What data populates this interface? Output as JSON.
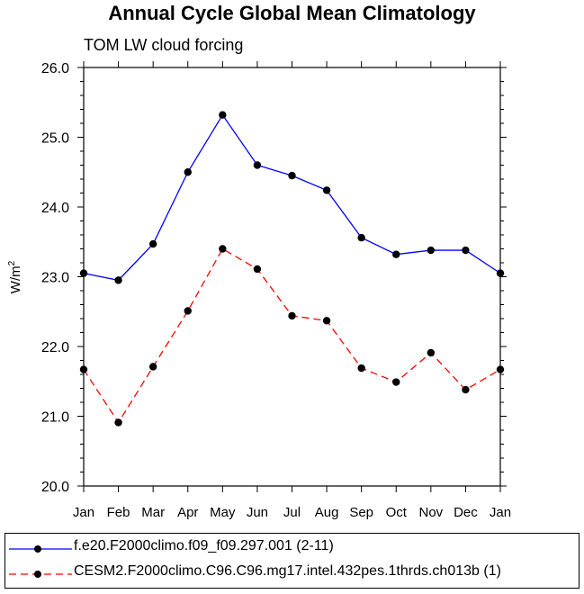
{
  "title": "Annual Cycle Global Mean Climatology",
  "subtitle": "TOM LW cloud forcing",
  "ylabel_main": "W/m",
  "ylabel_sup": "2",
  "chart_data": {
    "type": "line",
    "categories": [
      "Jan",
      "Feb",
      "Mar",
      "Apr",
      "May",
      "Jun",
      "Jul",
      "Aug",
      "Sep",
      "Oct",
      "Nov",
      "Dec",
      "Jan"
    ],
    "ylim": [
      20.0,
      26.0
    ],
    "yticks": [
      "20.0",
      "21.0",
      "22.0",
      "23.0",
      "24.0",
      "25.0",
      "26.0"
    ],
    "series": [
      {
        "name": "f.e20.F2000climo.f09_f09.297.001 (2-11)",
        "color": "#0000ff",
        "dash": "solid",
        "values": [
          23.05,
          22.95,
          23.47,
          24.5,
          25.32,
          24.6,
          24.45,
          24.24,
          23.56,
          23.32,
          23.38,
          23.38,
          23.05
        ]
      },
      {
        "name": "CESM2.F2000climo.C96.C96.mg17.intel.432pes.1thrds.ch013b (1)",
        "color": "#ff0000",
        "dash": "dashed",
        "values": [
          21.67,
          20.91,
          21.71,
          22.51,
          23.4,
          23.11,
          22.44,
          22.37,
          21.69,
          21.49,
          21.91,
          21.38,
          21.67
        ]
      }
    ]
  }
}
